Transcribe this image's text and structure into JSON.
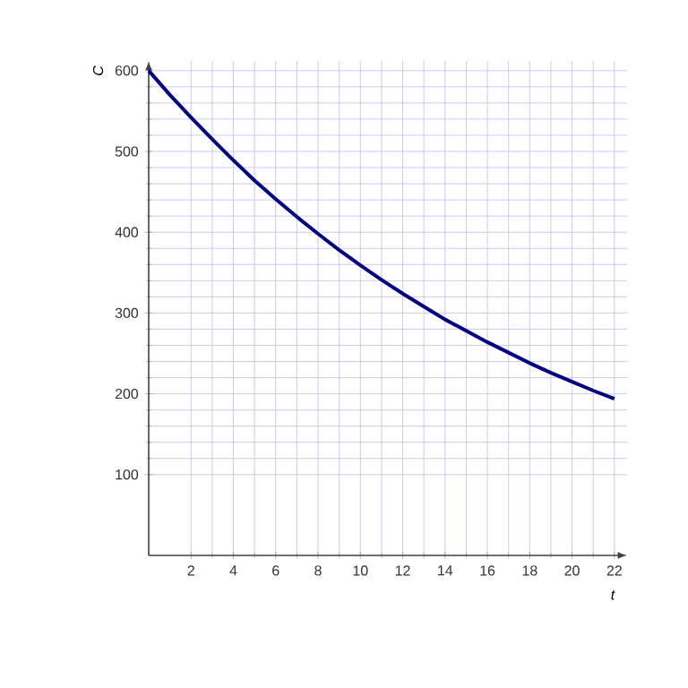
{
  "chart_data": {
    "type": "line",
    "xlabel": "t",
    "ylabel": "C",
    "x": [
      0,
      1,
      2,
      3,
      4,
      5,
      6,
      7,
      8,
      9,
      10,
      11,
      12,
      13,
      14,
      15,
      16,
      17,
      18,
      19,
      20,
      21,
      22
    ],
    "series": [
      {
        "color": "#000080",
        "values": [
          600,
          570,
          542,
          515,
          489,
          464,
          441,
          419,
          398,
          378,
          359,
          341,
          324,
          308,
          292,
          278,
          264,
          251,
          238,
          226,
          215,
          204,
          194
        ]
      }
    ],
    "xlim": [
      0,
      22.6
    ],
    "ylim": [
      0,
      612
    ],
    "xticks": [
      2,
      4,
      6,
      8,
      10,
      12,
      14,
      16,
      18,
      20,
      22
    ],
    "yticks": [
      100,
      200,
      300,
      400,
      500,
      600
    ],
    "grid": true,
    "marker": "none",
    "line_style": "solid"
  }
}
